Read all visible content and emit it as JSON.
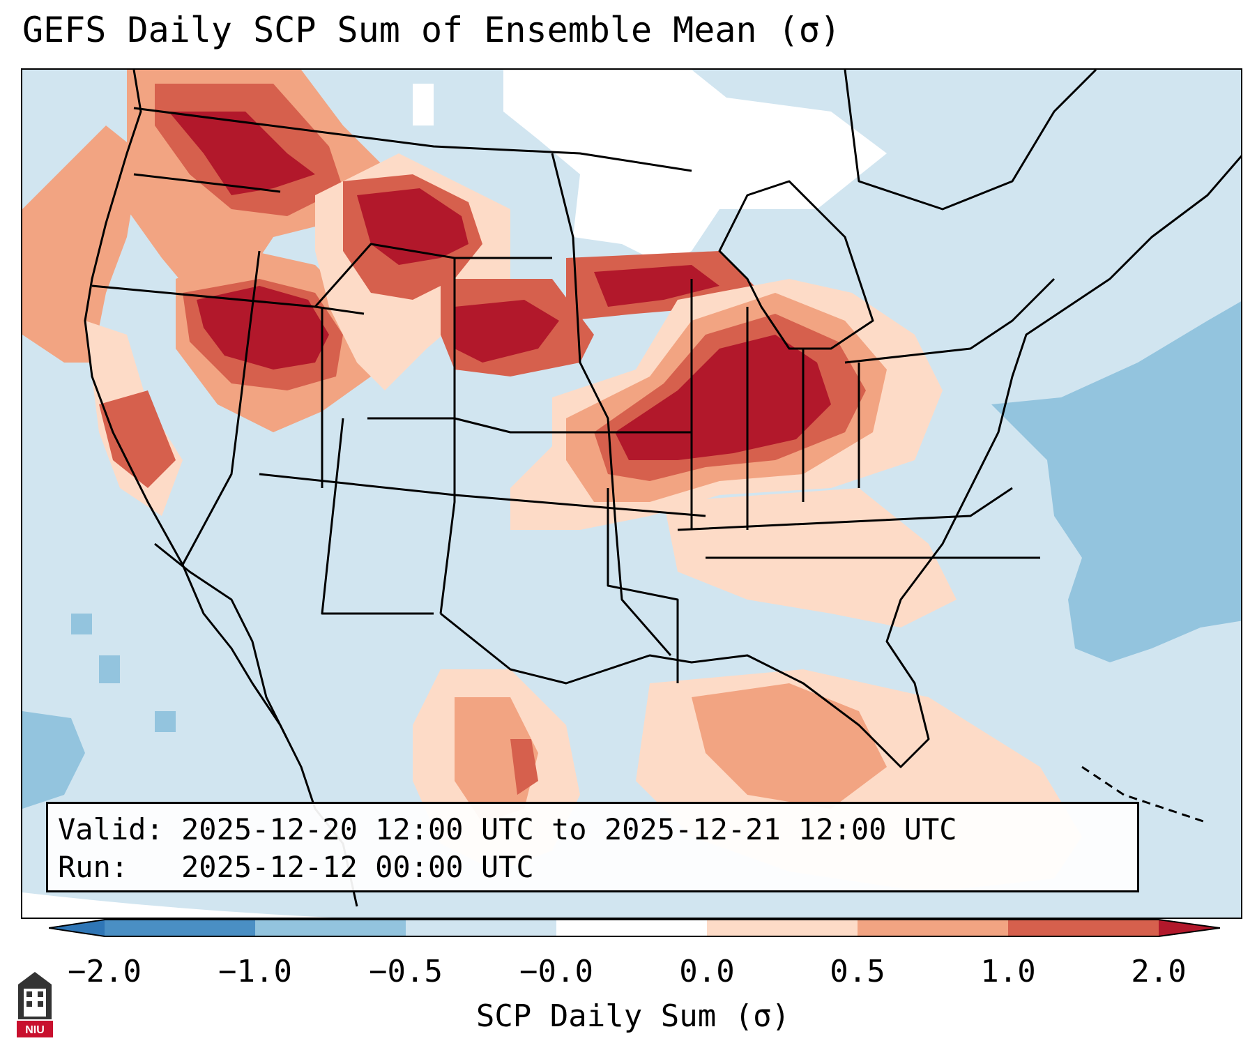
{
  "title": "GEFS Daily SCP Sum of Ensemble Mean (σ)",
  "info": {
    "valid": "Valid: 2025-12-20 12:00 UTC to 2025-12-21 12:00 UTC",
    "run": "Run:   2025-12-12 00:00 UTC"
  },
  "colorbar": {
    "label": "SCP Daily Sum (σ)",
    "ticks": [
      "−2.0",
      "−1.0",
      "−0.5",
      "−0.0",
      "0.0",
      "0.5",
      "1.0",
      "2.0"
    ],
    "colors": [
      "#2f76b6",
      "#4a8fc4",
      "#93c4de",
      "#d1e5f0",
      "#ffffff",
      "#fddbc7",
      "#f2a482",
      "#d6604d",
      "#b2182b"
    ]
  },
  "logo": {
    "text": "NIU"
  }
}
